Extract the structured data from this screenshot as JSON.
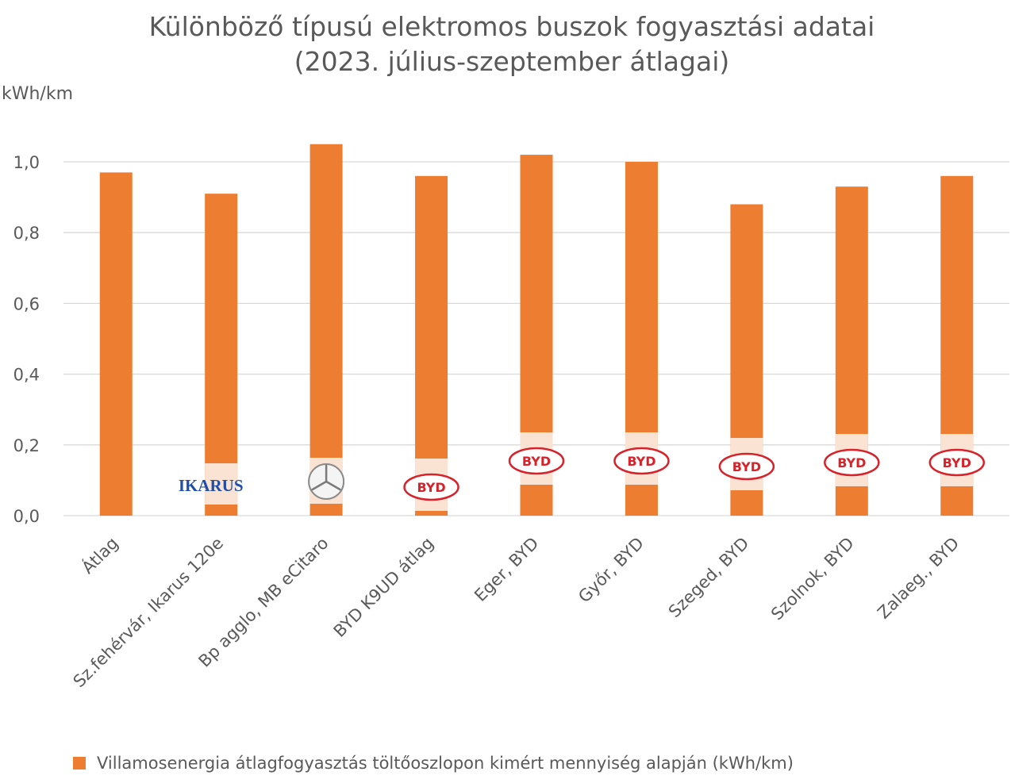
{
  "chart_data": {
    "type": "bar",
    "title": "Különböző típusú elektromos buszok fogyasztási adatai\n(2023. július-szeptember átlagai)",
    "ylabel": "kWh/km",
    "xlabel": "",
    "ylim": [
      0,
      1.0
    ],
    "yticks": [
      "0,0",
      "0,2",
      "0,4",
      "0,6",
      "0,8",
      "1,0"
    ],
    "grid": true,
    "legend_position": "bottom",
    "categories": [
      "Átlag",
      "Sz.fehérvár, Ikarus 120e",
      "Bp agglo, MB eCitaro",
      "BYD K9UD átlag",
      "Eger, BYD",
      "Győr, BYD",
      "Szeged, BYD",
      "Szolnok, BYD",
      "Zalaeg., BYD"
    ],
    "series": [
      {
        "name": "Villamosenergia átlagfogyasztás töltőoszlopon kimért mennyiség alapján (kWh/km)",
        "values": [
          0.97,
          0.91,
          1.05,
          0.96,
          1.02,
          1.0,
          0.88,
          0.93,
          0.96
        ]
      }
    ],
    "logos": [
      "",
      "IKARUS",
      "mercedes-star-logo",
      "BYD",
      "BYD",
      "BYD",
      "BYD",
      "BYD",
      "BYD"
    ]
  },
  "colors": {
    "bar": "#ED7D31",
    "grid": "#D9D9D9",
    "text": "#595959",
    "ikarus_logo": "#1F4EA8",
    "byd_logo": "#D8222A",
    "logo_backdrop": "#FBE3D3"
  }
}
